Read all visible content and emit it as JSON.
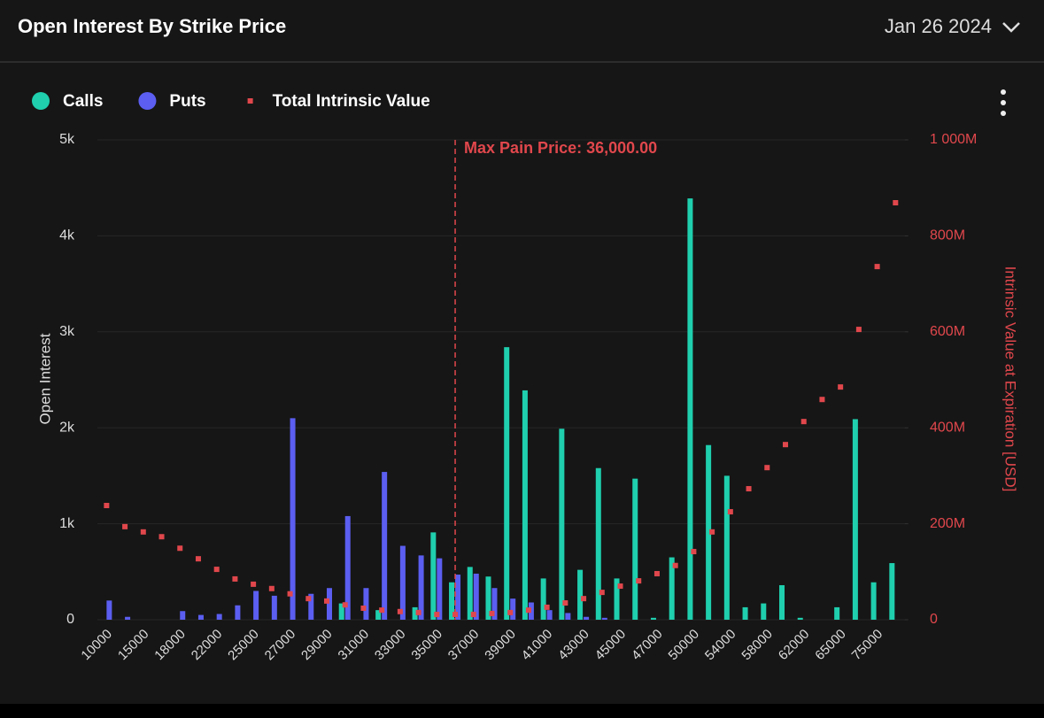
{
  "header": {
    "title": "Open Interest By Strike Price",
    "date": "Jan 26 2024"
  },
  "chart_data": {
    "type": "bar",
    "categories": [
      "10000",
      null,
      "15000",
      null,
      "18000",
      null,
      "22000",
      null,
      "25000",
      null,
      "27000",
      null,
      "29000",
      null,
      "31000",
      null,
      "33000",
      null,
      "35000",
      null,
      "37000",
      null,
      "39000",
      null,
      "41000",
      null,
      "43000",
      null,
      "45000",
      null,
      "47000",
      null,
      "50000",
      null,
      "54000",
      null,
      "58000",
      null,
      "62000",
      null,
      "65000",
      null,
      "75000",
      null
    ],
    "series": [
      {
        "name": "Calls",
        "type": "bar",
        "color": "#1fcfae",
        "values": [
          0,
          0,
          0,
          0,
          0,
          0,
          0,
          0,
          0,
          0,
          0,
          0,
          0,
          170,
          0,
          100,
          0,
          130,
          910,
          390,
          550,
          450,
          2840,
          2390,
          430,
          1990,
          520,
          1580,
          430,
          1470,
          20,
          650,
          4390,
          1820,
          1500,
          130,
          170,
          360,
          20,
          0,
          130,
          2090,
          390,
          590
        ]
      },
      {
        "name": "Puts",
        "type": "bar",
        "color": "#5b5ef0",
        "values": [
          200,
          30,
          0,
          0,
          90,
          50,
          60,
          150,
          300,
          250,
          2100,
          270,
          330,
          1080,
          330,
          1540,
          770,
          670,
          640,
          470,
          480,
          330,
          220,
          180,
          100,
          70,
          30,
          20,
          0,
          0,
          0,
          0,
          0,
          0,
          0,
          0,
          0,
          0,
          0,
          0,
          0,
          0,
          0,
          0
        ]
      },
      {
        "name": "Total Intrinsic Value",
        "type": "scatter",
        "axis": "y2",
        "color": "#e0474c",
        "values": [
          238000000,
          194000000,
          183000000,
          173000000,
          149000000,
          127000000,
          105000000,
          85000000,
          74000000,
          65000000,
          54000000,
          44000000,
          39000000,
          31000000,
          24000000,
          20000000,
          17000000,
          15000000,
          11000000,
          11000000,
          11000000,
          13000000,
          15000000,
          20000000,
          26000000,
          35000000,
          44000000,
          57000000,
          70000000,
          81000000,
          96000000,
          113000000,
          142000000,
          183000000,
          225000000,
          273000000,
          317000000,
          365000000,
          413000000,
          459000000,
          485000000,
          605000000,
          736000000,
          869000000
        ]
      }
    ],
    "ylabel": "Open Interest",
    "y2label": "Intrinsic Value at Expiration [USD]",
    "ylim": [
      0,
      5000
    ],
    "yticks": [
      0,
      {
        "value": 1000,
        "label": "1k"
      },
      {
        "value": 2000,
        "label": "2k"
      },
      {
        "value": 3000,
        "label": "3k"
      },
      {
        "value": 4000,
        "label": "4k"
      },
      {
        "value": 5000,
        "label": "5k"
      }
    ],
    "y2lim": [
      0,
      1000000000
    ],
    "y2ticks": [
      0,
      {
        "value": 200000000,
        "label": "200M"
      },
      {
        "value": 400000000,
        "label": "400M"
      },
      {
        "value": 600000000,
        "label": "600M"
      },
      {
        "value": 800000000,
        "label": "800M"
      },
      {
        "value": 1000000000,
        "label": "1 000M"
      }
    ],
    "grid": true,
    "max_pain": {
      "value": 36000,
      "label": "Max Pain Price: 36,000.00",
      "color": "#e0474c"
    }
  }
}
